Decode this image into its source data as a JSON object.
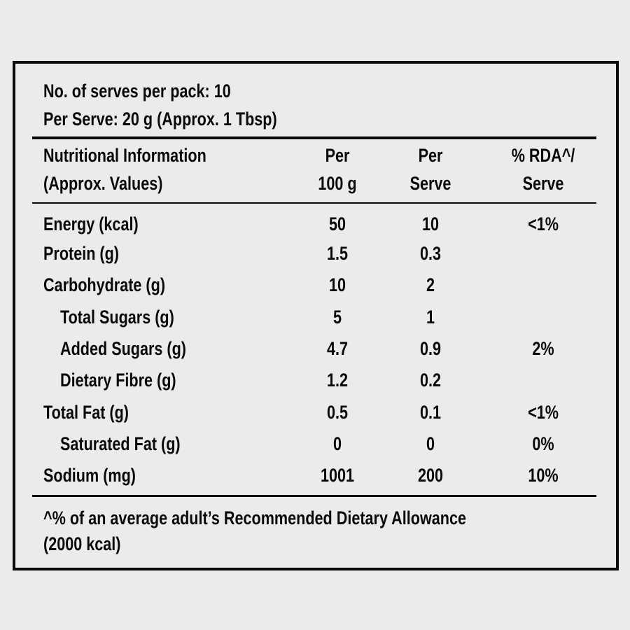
{
  "serves_per_pack": "No. of serves per pack: 10",
  "per_serve": "Per Serve: 20 g (Approx. 1 Tbsp)",
  "header": {
    "col1": [
      "Nutritional Information",
      "(Approx. Values)"
    ],
    "col2": [
      "Per",
      "100 g"
    ],
    "col3": [
      "Per",
      "Serve"
    ],
    "col4": [
      "% RDA^/",
      "Serve"
    ]
  },
  "rows": [
    {
      "label": "Energy (kcal)",
      "per100": "50",
      "serve": "10",
      "rda": "<1%",
      "indent": false
    },
    {
      "label": "Protein (g)",
      "per100": "1.5",
      "serve": "0.3",
      "rda": "",
      "indent": false
    },
    {
      "label": "Carbohydrate (g)",
      "per100": "10",
      "serve": "2",
      "rda": "",
      "indent": false
    },
    {
      "label": "Total Sugars (g)",
      "per100": "5",
      "serve": "1",
      "rda": "",
      "indent": true
    },
    {
      "label": "Added Sugars (g)",
      "per100": "4.7",
      "serve": "0.9",
      "rda": "2%",
      "indent": true
    },
    {
      "label": "Dietary Fibre (g)",
      "per100": "1.2",
      "serve": "0.2",
      "rda": "",
      "indent": true
    },
    {
      "label": "Total Fat (g)",
      "per100": "0.5",
      "serve": "0.1",
      "rda": "<1%",
      "indent": false
    },
    {
      "label": "Saturated Fat (g)",
      "per100": "0",
      "serve": "0",
      "rda": "0%",
      "indent": true
    },
    {
      "label": "Sodium (mg)",
      "per100": "1001",
      "serve": "200",
      "rda": "10%",
      "indent": false
    }
  ],
  "footnote": [
    "^% of an average adult’s Recommended Dietary Allowance",
    "(2000 kcal)"
  ]
}
